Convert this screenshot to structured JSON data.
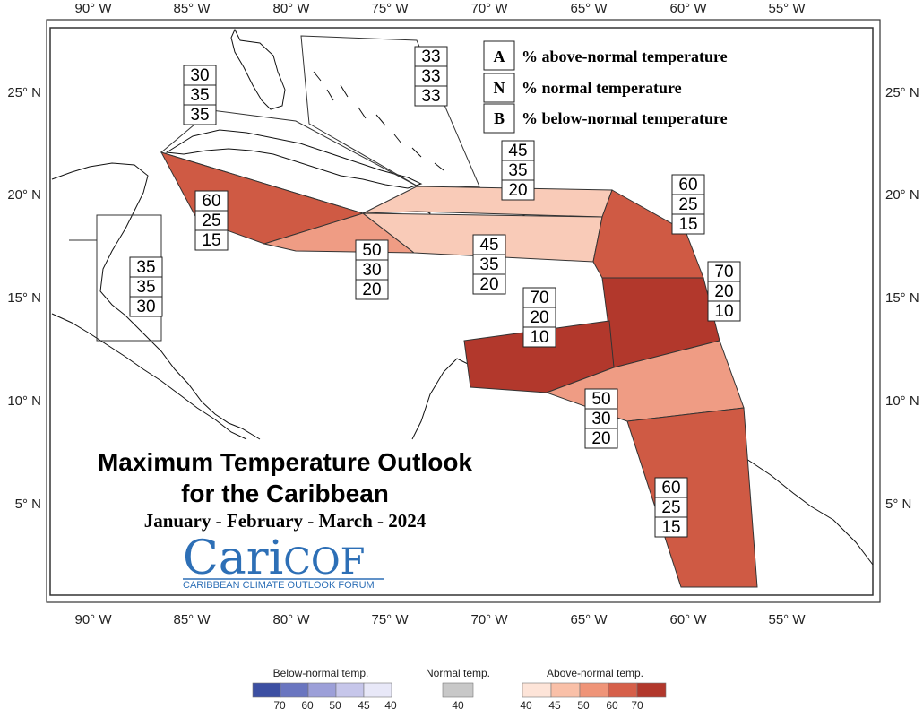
{
  "map": {
    "longitude_ticks": [
      "90° W",
      "85° W",
      "80° W",
      "75° W",
      "70° W",
      "65° W",
      "60° W",
      "55° W"
    ],
    "latitude_ticks": [
      "25° N",
      "20° N",
      "15° N",
      "10° N",
      "5° N"
    ]
  },
  "legend": {
    "items": [
      {
        "key": "A",
        "text": "% above-normal temperature"
      },
      {
        "key": "N",
        "text": "% normal temperature"
      },
      {
        "key": "B",
        "text": "% below-normal temperature"
      }
    ]
  },
  "title": {
    "line1": "Maximum Temperature Outlook",
    "line2": "for the Caribbean",
    "period": "January - February - March - 2024"
  },
  "logo": {
    "name_part1": "Cari",
    "name_part2": "COF",
    "subtitle": "CARIBBEAN CLIMATE OUTLOOK FORUM"
  },
  "regions": [
    {
      "id": "belize-honduras",
      "above": "35",
      "normal": "35",
      "below": "30",
      "color": "#ffffff"
    },
    {
      "id": "western-cuba",
      "above": "30",
      "normal": "35",
      "below": "35",
      "color": "#ffffff"
    },
    {
      "id": "bahamas",
      "above": "33",
      "normal": "33",
      "below": "33",
      "color": "#ffffff"
    },
    {
      "id": "cayman",
      "above": "60",
      "normal": "25",
      "below": "15",
      "color": "#cf5a44"
    },
    {
      "id": "jamaica",
      "above": "50",
      "normal": "30",
      "below": "20",
      "color": "#ef9c84"
    },
    {
      "id": "hispaniola-north",
      "above": "45",
      "normal": "35",
      "below": "20",
      "color": "#f9cbb8"
    },
    {
      "id": "hispaniola-south",
      "above": "45",
      "normal": "35",
      "below": "20",
      "color": "#f9cbb8"
    },
    {
      "id": "northern-lesser-antilles",
      "above": "60",
      "normal": "25",
      "below": "15",
      "color": "#cf5a44"
    },
    {
      "id": "windward-islands",
      "above": "70",
      "normal": "20",
      "below": "10",
      "color": "#b2382c"
    },
    {
      "id": "abc-islands",
      "above": "70",
      "normal": "20",
      "below": "10",
      "color": "#b2382c"
    },
    {
      "id": "trinidad",
      "above": "50",
      "normal": "30",
      "below": "20",
      "color": "#ef9c84"
    },
    {
      "id": "guianas",
      "above": "60",
      "normal": "25",
      "below": "15",
      "color": "#cf5a44"
    }
  ],
  "colorbar": {
    "below": {
      "title": "Below-normal temp.",
      "ticks": [
        "70",
        "60",
        "50",
        "45",
        "40"
      ],
      "colors": [
        "#3c4fa2",
        "#6a76c0",
        "#9c9fd8",
        "#c6c6ea",
        "#e8e8f8"
      ]
    },
    "normal": {
      "title": "Normal temp.",
      "ticks": [
        "40"
      ],
      "colors": [
        "#c8c8c8"
      ]
    },
    "above": {
      "title": "Above-normal temp.",
      "ticks": [
        "40",
        "45",
        "50",
        "60",
        "70"
      ],
      "colors": [
        "#fde4d8",
        "#f9c0a8",
        "#ef9478",
        "#d6604a",
        "#b2382c"
      ]
    }
  }
}
